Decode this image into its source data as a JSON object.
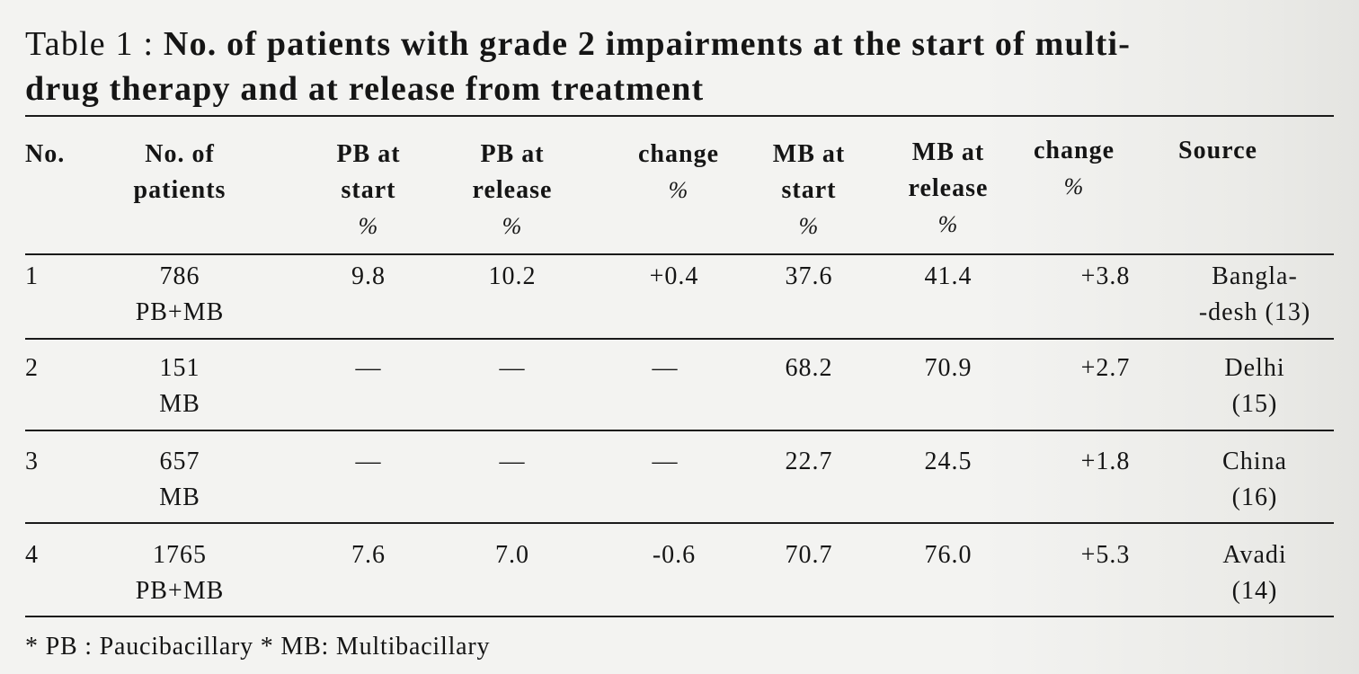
{
  "title": {
    "lead": "Table 1 :",
    "text_line1": "No. of patients with grade 2 impairments at the start of multi-",
    "text_line2": "drug therapy and at release from treatment"
  },
  "table": {
    "headers": [
      {
        "lines": [
          "No."
        ],
        "pct": ""
      },
      {
        "lines": [
          "No. of",
          "patients"
        ],
        "pct": ""
      },
      {
        "lines": [
          "PB at",
          "start"
        ],
        "pct": "%"
      },
      {
        "lines": [
          "PB at",
          "release"
        ],
        "pct": "%"
      },
      {
        "lines": [
          "change"
        ],
        "pct": "%"
      },
      {
        "lines": [
          "MB at",
          "start"
        ],
        "pct": "%"
      },
      {
        "lines": [
          "MB at",
          "release"
        ],
        "pct": "%"
      },
      {
        "lines": [
          "change"
        ],
        "pct": "%"
      },
      {
        "lines": [
          "Source"
        ],
        "pct": ""
      }
    ],
    "rows": [
      {
        "no": "1",
        "patients": [
          "786",
          "PB+MB"
        ],
        "pb_start": "9.8",
        "pb_release": "10.2",
        "pb_change": "+0.4",
        "mb_start": "37.6",
        "mb_release": "41.4",
        "mb_change": "+3.8",
        "source": [
          "Bangla-",
          "-desh (13)"
        ]
      },
      {
        "no": "2",
        "patients": [
          "151",
          "MB"
        ],
        "pb_start": "—",
        "pb_release": "—",
        "pb_change": "—",
        "mb_start": "68.2",
        "mb_release": "70.9",
        "mb_change": "+2.7",
        "source": [
          "Delhi",
          "(15)"
        ]
      },
      {
        "no": "3",
        "patients": [
          "657",
          "MB"
        ],
        "pb_start": "—",
        "pb_release": "—",
        "pb_change": "—",
        "mb_start": "22.7",
        "mb_release": "24.5",
        "mb_change": "+1.8",
        "source": [
          "China",
          "(16)"
        ]
      },
      {
        "no": "4",
        "patients": [
          "1765",
          "PB+MB"
        ],
        "pb_start": "7.6",
        "pb_release": "7.0",
        "pb_change": "-0.6",
        "mb_start": "70.7",
        "mb_release": "76.0",
        "mb_change": "+5.3",
        "source": [
          "Avadi",
          "(14)"
        ]
      }
    ]
  },
  "footnote": "* PB : Paucibacillary * MB: Multibacillary"
}
